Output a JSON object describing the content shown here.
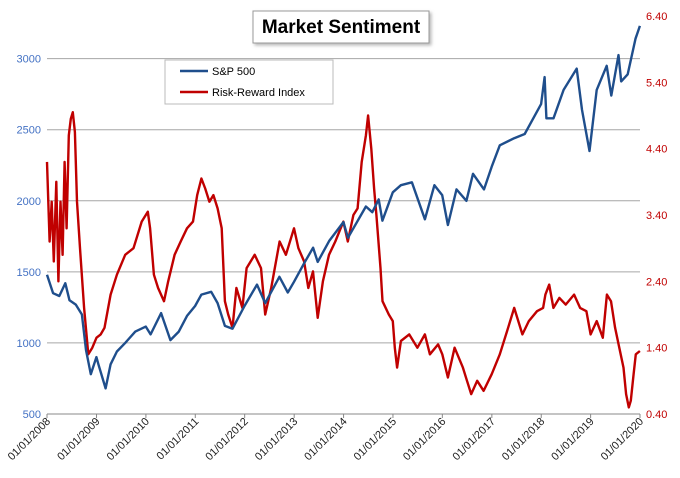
{
  "chart_data": {
    "type": "line",
    "title": "Market Sentiment",
    "x_tick_labels": [
      "01/01/2008",
      "01/01/2009",
      "01/01/2010",
      "01/01/2011",
      "01/01/2012",
      "01/01/2013",
      "01/01/2014",
      "01/01/2015",
      "01/01/2016",
      "01/01/2017",
      "01/01/2018",
      "01/01/2019",
      "01/01/2020"
    ],
    "xlim": [
      "2008-01-01",
      "2020-01-01"
    ],
    "y_left": {
      "ticks": [
        "500",
        "1000",
        "1500",
        "2000",
        "2500",
        "3000"
      ],
      "lim": [
        500,
        3300
      ]
    },
    "y_right": {
      "ticks": [
        "0.40",
        "1.40",
        "2.40",
        "3.40",
        "4.40",
        "5.40",
        "6.40"
      ],
      "lim": [
        0.4,
        6.4
      ]
    },
    "grid": {
      "horizontal": true,
      "vertical": false
    },
    "legend_position": "top-left",
    "series": [
      {
        "name": "S&P 500",
        "color": "#1f4e8c",
        "axis": "left",
        "points": [
          [
            "2008-01-01",
            1480
          ],
          [
            "2008-02-15",
            1350
          ],
          [
            "2008-04-01",
            1330
          ],
          [
            "2008-05-15",
            1420
          ],
          [
            "2008-06-15",
            1300
          ],
          [
            "2008-08-01",
            1270
          ],
          [
            "2008-09-15",
            1200
          ],
          [
            "2008-10-15",
            950
          ],
          [
            "2008-11-20",
            780
          ],
          [
            "2008-12-31",
            900
          ],
          [
            "2009-01-15",
            850
          ],
          [
            "2009-03-09",
            680
          ],
          [
            "2009-04-15",
            850
          ],
          [
            "2009-06-01",
            940
          ],
          [
            "2009-08-01",
            1000
          ],
          [
            "2009-10-15",
            1080
          ],
          [
            "2009-12-31",
            1115
          ],
          [
            "2010-02-05",
            1060
          ],
          [
            "2010-04-23",
            1210
          ],
          [
            "2010-07-01",
            1020
          ],
          [
            "2010-09-01",
            1080
          ],
          [
            "2010-11-01",
            1190
          ],
          [
            "2010-12-31",
            1260
          ],
          [
            "2011-02-15",
            1340
          ],
          [
            "2011-04-29",
            1360
          ],
          [
            "2011-06-15",
            1280
          ],
          [
            "2011-08-08",
            1120
          ],
          [
            "2011-10-03",
            1100
          ],
          [
            "2011-12-31",
            1260
          ],
          [
            "2012-04-01",
            1410
          ],
          [
            "2012-06-01",
            1280
          ],
          [
            "2012-09-14",
            1465
          ],
          [
            "2012-11-15",
            1355
          ],
          [
            "2012-12-31",
            1430
          ],
          [
            "2013-03-15",
            1560
          ],
          [
            "2013-05-21",
            1670
          ],
          [
            "2013-06-24",
            1570
          ],
          [
            "2013-09-18",
            1720
          ],
          [
            "2013-12-31",
            1850
          ],
          [
            "2014-02-03",
            1740
          ],
          [
            "2014-06-15",
            1960
          ],
          [
            "2014-08-01",
            1920
          ],
          [
            "2014-09-18",
            2010
          ],
          [
            "2014-10-15",
            1860
          ],
          [
            "2014-12-31",
            2060
          ],
          [
            "2015-03-01",
            2110
          ],
          [
            "2015-05-21",
            2130
          ],
          [
            "2015-08-25",
            1870
          ],
          [
            "2015-11-03",
            2110
          ],
          [
            "2015-12-31",
            2040
          ],
          [
            "2016-02-11",
            1830
          ],
          [
            "2016-04-15",
            2080
          ],
          [
            "2016-06-27",
            2000
          ],
          [
            "2016-08-15",
            2190
          ],
          [
            "2016-11-04",
            2080
          ],
          [
            "2016-12-31",
            2240
          ],
          [
            "2017-03-01",
            2390
          ],
          [
            "2017-06-15",
            2440
          ],
          [
            "2017-09-01",
            2470
          ],
          [
            "2017-12-31",
            2680
          ],
          [
            "2018-01-26",
            2870
          ],
          [
            "2018-02-08",
            2580
          ],
          [
            "2018-04-02",
            2580
          ],
          [
            "2018-06-15",
            2780
          ],
          [
            "2018-09-20",
            2930
          ],
          [
            "2018-10-29",
            2640
          ],
          [
            "2018-12-24",
            2350
          ],
          [
            "2019-02-15",
            2780
          ],
          [
            "2019-04-30",
            2950
          ],
          [
            "2019-06-03",
            2740
          ],
          [
            "2019-07-26",
            3025
          ],
          [
            "2019-08-15",
            2840
          ],
          [
            "2019-10-02",
            2890
          ],
          [
            "2019-11-29",
            3140
          ],
          [
            "2019-12-31",
            3230
          ]
        ]
      },
      {
        "name": "Risk-Reward Index",
        "color": "#c00000",
        "axis": "right",
        "points": [
          [
            "2008-01-01",
            4.2
          ],
          [
            "2008-01-20",
            3.0
          ],
          [
            "2008-02-05",
            3.6
          ],
          [
            "2008-02-20",
            2.7
          ],
          [
            "2008-03-10",
            3.9
          ],
          [
            "2008-03-25",
            2.4
          ],
          [
            "2008-04-10",
            3.6
          ],
          [
            "2008-04-25",
            2.8
          ],
          [
            "2008-05-10",
            4.2
          ],
          [
            "2008-05-25",
            3.2
          ],
          [
            "2008-06-10",
            4.6
          ],
          [
            "2008-06-25",
            4.85
          ],
          [
            "2008-07-10",
            4.95
          ],
          [
            "2008-07-25",
            4.65
          ],
          [
            "2008-08-10",
            3.6
          ],
          [
            "2008-09-01",
            2.9
          ],
          [
            "2008-10-01",
            2.0
          ],
          [
            "2008-11-01",
            1.3
          ],
          [
            "2008-12-01",
            1.4
          ],
          [
            "2009-01-01",
            1.55
          ],
          [
            "2009-02-01",
            1.6
          ],
          [
            "2009-03-01",
            1.7
          ],
          [
            "2009-04-15",
            2.2
          ],
          [
            "2009-06-01",
            2.5
          ],
          [
            "2009-08-01",
            2.8
          ],
          [
            "2009-10-01",
            2.9
          ],
          [
            "2009-12-01",
            3.3
          ],
          [
            "2010-01-15",
            3.45
          ],
          [
            "2010-02-01",
            3.2
          ],
          [
            "2010-03-01",
            2.5
          ],
          [
            "2010-04-01",
            2.3
          ],
          [
            "2010-05-15",
            2.1
          ],
          [
            "2010-06-15",
            2.4
          ],
          [
            "2010-08-01",
            2.8
          ],
          [
            "2010-09-15",
            3.0
          ],
          [
            "2010-11-01",
            3.2
          ],
          [
            "2010-12-15",
            3.3
          ],
          [
            "2011-01-15",
            3.7
          ],
          [
            "2011-02-15",
            3.95
          ],
          [
            "2011-03-15",
            3.8
          ],
          [
            "2011-04-15",
            3.6
          ],
          [
            "2011-05-15",
            3.7
          ],
          [
            "2011-06-15",
            3.5
          ],
          [
            "2011-07-15",
            3.2
          ],
          [
            "2011-08-08",
            2.1
          ],
          [
            "2011-09-01",
            1.9
          ],
          [
            "2011-10-03",
            1.7
          ],
          [
            "2011-11-01",
            2.3
          ],
          [
            "2011-12-15",
            2.0
          ],
          [
            "2012-01-15",
            2.6
          ],
          [
            "2012-03-15",
            2.8
          ],
          [
            "2012-05-01",
            2.6
          ],
          [
            "2012-06-01",
            1.9
          ],
          [
            "2012-07-15",
            2.3
          ],
          [
            "2012-09-15",
            3.0
          ],
          [
            "2012-11-01",
            2.8
          ],
          [
            "2012-12-31",
            3.2
          ],
          [
            "2013-02-01",
            2.9
          ],
          [
            "2013-03-15",
            2.7
          ],
          [
            "2013-04-15",
            2.3
          ],
          [
            "2013-05-20",
            2.55
          ],
          [
            "2013-06-24",
            1.85
          ],
          [
            "2013-08-01",
            2.4
          ],
          [
            "2013-09-15",
            2.8
          ],
          [
            "2013-11-01",
            3.0
          ],
          [
            "2013-12-31",
            3.3
          ],
          [
            "2014-02-01",
            3.0
          ],
          [
            "2014-03-15",
            3.4
          ],
          [
            "2014-04-15",
            3.5
          ],
          [
            "2014-05-15",
            4.2
          ],
          [
            "2014-06-15",
            4.6
          ],
          [
            "2014-07-01",
            4.9
          ],
          [
            "2014-07-25",
            4.4
          ],
          [
            "2014-08-15",
            3.8
          ],
          [
            "2014-09-01",
            3.4
          ],
          [
            "2014-10-01",
            2.6
          ],
          [
            "2014-10-16",
            2.1
          ],
          [
            "2014-12-01",
            1.9
          ],
          [
            "2014-12-31",
            1.8
          ],
          [
            "2015-01-15",
            1.4
          ],
          [
            "2015-02-01",
            1.1
          ],
          [
            "2015-03-01",
            1.5
          ],
          [
            "2015-05-01",
            1.6
          ],
          [
            "2015-07-01",
            1.4
          ],
          [
            "2015-08-25",
            1.6
          ],
          [
            "2015-10-01",
            1.3
          ],
          [
            "2015-12-01",
            1.45
          ],
          [
            "2016-01-01",
            1.3
          ],
          [
            "2016-02-11",
            0.95
          ],
          [
            "2016-04-01",
            1.4
          ],
          [
            "2016-06-01",
            1.1
          ],
          [
            "2016-07-01",
            0.9
          ],
          [
            "2016-08-01",
            0.7
          ],
          [
            "2016-09-15",
            0.9
          ],
          [
            "2016-11-01",
            0.75
          ],
          [
            "2016-12-31",
            1.0
          ],
          [
            "2017-03-01",
            1.3
          ],
          [
            "2017-05-01",
            1.7
          ],
          [
            "2017-06-15",
            2.0
          ],
          [
            "2017-08-15",
            1.6
          ],
          [
            "2017-10-01",
            1.8
          ],
          [
            "2017-12-01",
            1.95
          ],
          [
            "2018-01-15",
            2.0
          ],
          [
            "2018-02-01",
            2.2
          ],
          [
            "2018-03-01",
            2.35
          ],
          [
            "2018-04-01",
            2.0
          ],
          [
            "2018-05-15",
            2.15
          ],
          [
            "2018-07-01",
            2.05
          ],
          [
            "2018-09-01",
            2.2
          ],
          [
            "2018-10-15",
            2.0
          ],
          [
            "2018-12-01",
            1.95
          ],
          [
            "2019-01-01",
            1.6
          ],
          [
            "2019-02-15",
            1.8
          ],
          [
            "2019-04-01",
            1.55
          ],
          [
            "2019-05-01",
            2.2
          ],
          [
            "2019-06-01",
            2.1
          ],
          [
            "2019-07-01",
            1.7
          ],
          [
            "2019-08-01",
            1.4
          ],
          [
            "2019-09-01",
            1.1
          ],
          [
            "2019-09-20",
            0.7
          ],
          [
            "2019-10-10",
            0.5
          ],
          [
            "2019-10-25",
            0.6
          ],
          [
            "2019-11-15",
            1.0
          ],
          [
            "2019-12-01",
            1.3
          ],
          [
            "2019-12-31",
            1.35
          ]
        ]
      }
    ]
  }
}
